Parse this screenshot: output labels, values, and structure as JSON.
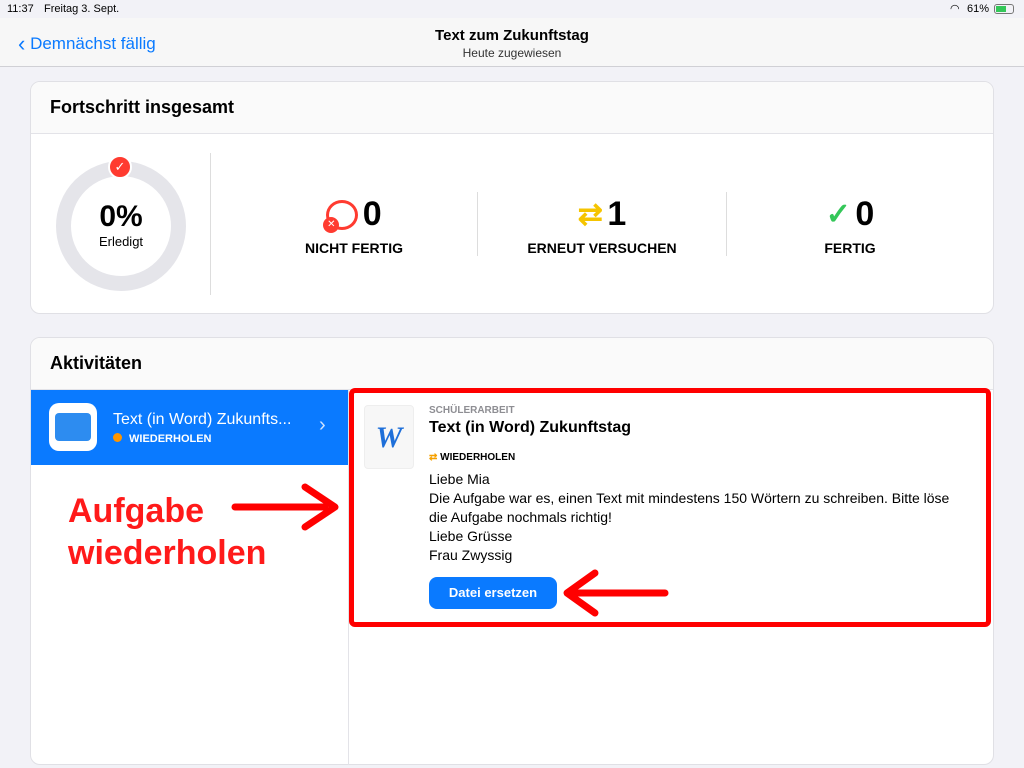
{
  "status_bar": {
    "time": "11:37",
    "date": "Freitag 3. Sept.",
    "battery": "61%"
  },
  "nav": {
    "back_label": "Demnächst fällig",
    "title": "Text zum Zukunftstag",
    "subtitle": "Heute zugewiesen"
  },
  "progress": {
    "title": "Fortschritt insgesamt",
    "percent": "0%",
    "percent_label": "Erledigt",
    "stats": [
      {
        "value": "0",
        "label": "NICHT FERTIG"
      },
      {
        "value": "1",
        "label": "ERNEUT VERSUCHEN"
      },
      {
        "value": "0",
        "label": "FERTIG"
      }
    ]
  },
  "activities": {
    "title": "Aktivitäten",
    "items": [
      {
        "title": "Text (in Word) Zukunfts...",
        "status": "WIEDERHOLEN"
      }
    ]
  },
  "detail": {
    "kicker": "SCHÜLERARBEIT",
    "title": "Text (in Word) Zukunftstag",
    "status": "WIEDERHOLEN",
    "message": [
      "Liebe Mia",
      "Die Aufgabe war es, einen Text mit mindestens 150 Wörtern zu schreiben. Bitte löse",
      "die Aufgabe nochmals richtig!",
      "Liebe Grüsse",
      "Frau Zwyssig"
    ],
    "button": "Datei ersetzen"
  },
  "annotation": {
    "line1": "Aufgabe",
    "line2": "wiederholen"
  },
  "colors": {
    "accent": "#0a7aff",
    "annotation": "#ff0000",
    "retry": "#f5c400",
    "fail": "#ff3b30",
    "done": "#34c759"
  }
}
